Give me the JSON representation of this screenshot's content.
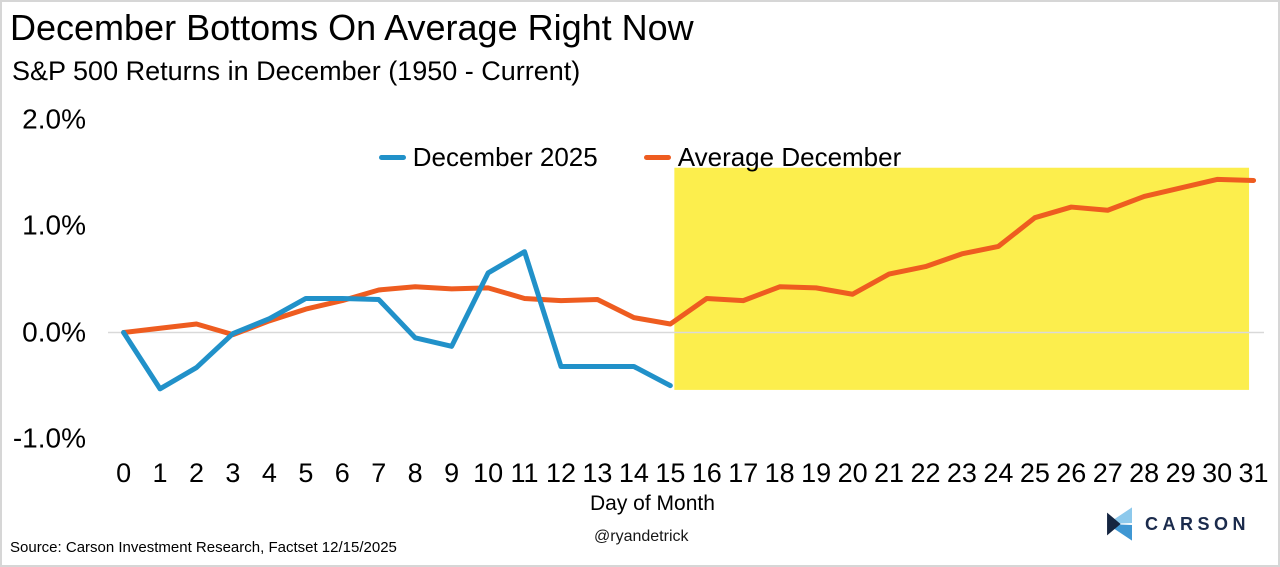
{
  "header": {
    "title": "December Bottoms On Average Right Now",
    "subtitle": "S&P 500 Returns in December (1950 - Current)"
  },
  "legend": [
    {
      "label": "December 2025",
      "color": "#2191c9"
    },
    {
      "label": "Average December",
      "color": "#ee5c20"
    }
  ],
  "chart_data": {
    "type": "line",
    "title": "December Bottoms On Average Right Now",
    "subtitle": "S&P 500 Returns in December (1950 - Current)",
    "xlabel": "Day of Month",
    "ylabel": "",
    "x": [
      0,
      1,
      2,
      3,
      4,
      5,
      6,
      7,
      8,
      9,
      10,
      11,
      12,
      13,
      14,
      15,
      16,
      17,
      18,
      19,
      20,
      21,
      22,
      23,
      24,
      25,
      26,
      27,
      28,
      29,
      30,
      31
    ],
    "series": [
      {
        "name": "December 2025",
        "color": "#2191c9",
        "values": [
          0.0,
          -0.53,
          -0.33,
          -0.01,
          0.13,
          0.32,
          0.32,
          0.31,
          -0.05,
          -0.13,
          0.56,
          0.76,
          -0.32,
          -0.32,
          -0.32,
          -0.5
        ]
      },
      {
        "name": "Average December",
        "color": "#ee5c20",
        "values": [
          0.0,
          0.04,
          0.08,
          -0.02,
          0.11,
          0.22,
          0.3,
          0.4,
          0.43,
          0.41,
          0.42,
          0.32,
          0.3,
          0.31,
          0.14,
          0.08,
          0.32,
          0.3,
          0.43,
          0.42,
          0.36,
          0.55,
          0.62,
          0.74,
          0.81,
          1.08,
          1.18,
          1.15,
          1.28,
          1.36,
          1.44,
          1.43
        ]
      }
    ],
    "y_ticks": [
      {
        "label": "2.0%",
        "value": 2.0
      },
      {
        "label": "1.0%",
        "value": 1.0
      },
      {
        "label": "0.0%",
        "value": 0.0
      },
      {
        "label": "-1.0%",
        "value": -1.0
      }
    ],
    "ylim": [
      -1.0,
      2.0
    ],
    "xlim": [
      0,
      31
    ],
    "grid": "zero-line-only",
    "zero_line_color": "#d9d9d9",
    "highlight_region": {
      "x_start": 15,
      "x_end": 31,
      "y_top": 1.55,
      "y_bottom": -0.54,
      "color": "#fcee4d"
    },
    "legend_position": "top-center"
  },
  "footer": {
    "source": "Source: Carson Investment Research, Factset 12/15/2025",
    "handle": "@ryandetrick",
    "brand": "CARSON",
    "brand_colors": {
      "text": "#1b2b4c",
      "mark_light": "#8dc9ec",
      "mark_mid": "#3f97d3",
      "mark_dark": "#152540"
    }
  }
}
